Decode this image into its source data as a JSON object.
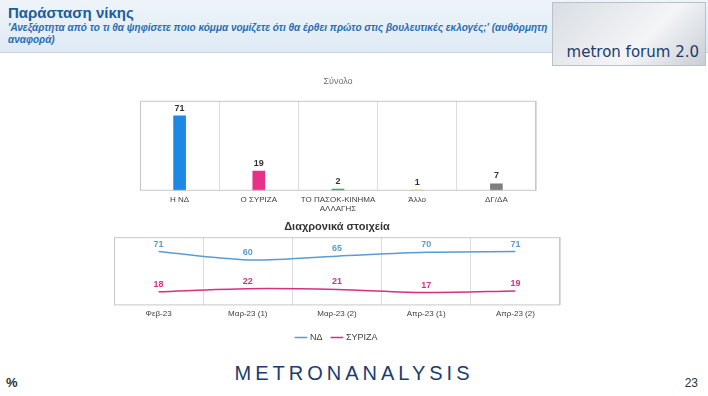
{
  "header": {
    "title": "Παράσταση νίκης",
    "subtitle": "'Ανεξάρτητα από το τι θα ψηφίσετε ποιο κόμμα νομίζετε ότι θα έρθει πρώτο στις βουλευτικές εκλογές;' (αυθόρμητη αναφορά)",
    "logo": "metron forum 2.0"
  },
  "chart_data": [
    {
      "type": "bar",
      "title": "Σύνολο",
      "categories": [
        "Η ΝΔ",
        "Ο ΣΥΡΙΖΑ",
        "ΤΟ ΠΑΣΟΚ-ΚΙΝΗΜΑ ΑΛΛΑΓΗΣ",
        "Άλλο",
        "ΔΓ/ΔΑ"
      ],
      "values": [
        71,
        19,
        2,
        1,
        7
      ],
      "colors": [
        "#1e88e5",
        "#e6318a",
        "#2e9e4f",
        "#f2c000",
        "#7f7f7f"
      ],
      "ylim": [
        0,
        85
      ],
      "grid": true,
      "data_labels": true,
      "tick_labels": "x"
    },
    {
      "type": "line",
      "title": "Διαχρονικά στοιχεία",
      "categories": [
        "Φεβ-23",
        "Μαρ-23 (1)",
        "Μαρ-23 (2)",
        "Απρ-23 (1)",
        "Απρ-23 (2)"
      ],
      "series": [
        {
          "name": "ΝΔ",
          "color": "#5b9bd5",
          "values": [
            71,
            60,
            65,
            70,
            71
          ]
        },
        {
          "name": "ΣΥΡΙΖΑ",
          "color": "#d6307f",
          "values": [
            18,
            22,
            21,
            17,
            19
          ]
        }
      ],
      "ylim": [
        0,
        90
      ],
      "grid": true,
      "data_labels": true,
      "tick_labels": "x",
      "legend": "bottom",
      "marker": "none"
    }
  ],
  "footer": {
    "unit": "%",
    "brand": "METRONANALYSIS",
    "page": 23
  }
}
